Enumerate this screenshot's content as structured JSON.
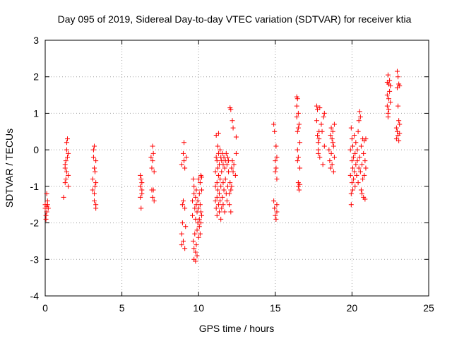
{
  "chart_data": {
    "type": "scatter",
    "title": "Day 095 of 2019, Sidereal Day-to-day VTEC variation (SDTVAR) for receiver ktia",
    "xlabel": "GPS time / hours",
    "ylabel": "SDTVAR / TECUs",
    "xlim": [
      0,
      25
    ],
    "ylim": [
      -4,
      3
    ],
    "xticks": [
      "0",
      "5",
      "10",
      "15",
      "20",
      "25"
    ],
    "yticks": [
      "-4",
      "-3",
      "-2",
      "-1",
      "0",
      "1",
      "2",
      "3"
    ],
    "grid": true,
    "marker": "+",
    "color": "#ff0000",
    "series": [
      {
        "name": "SDTVAR",
        "points": [
          [
            0.0,
            -1.5
          ],
          [
            0.0,
            -1.6
          ],
          [
            0.05,
            -1.8
          ],
          [
            0.05,
            -1.9
          ],
          [
            0.1,
            -1.7
          ],
          [
            0.1,
            -1.55
          ],
          [
            0.1,
            -1.2
          ],
          [
            0.15,
            -1.5
          ],
          [
            0.15,
            -1.4
          ],
          [
            0.2,
            -1.6
          ],
          [
            1.2,
            -1.3
          ],
          [
            1.3,
            -0.9
          ],
          [
            1.3,
            -0.5
          ],
          [
            1.3,
            -0.4
          ],
          [
            1.35,
            -0.8
          ],
          [
            1.35,
            -0.3
          ],
          [
            1.4,
            -0.6
          ],
          [
            1.4,
            0.0
          ],
          [
            1.4,
            0.2
          ],
          [
            1.45,
            0.3
          ],
          [
            1.45,
            -0.2
          ],
          [
            1.5,
            -1.0
          ],
          [
            1.5,
            -0.7
          ],
          [
            1.5,
            -0.1
          ],
          [
            3.1,
            -1.1
          ],
          [
            3.1,
            -0.8
          ],
          [
            3.15,
            -0.2
          ],
          [
            3.15,
            0.0
          ],
          [
            3.2,
            -0.5
          ],
          [
            3.2,
            0.1
          ],
          [
            3.2,
            -1.2
          ],
          [
            3.2,
            -1.4
          ],
          [
            3.25,
            -1.0
          ],
          [
            3.25,
            -0.6
          ],
          [
            3.3,
            -1.5
          ],
          [
            3.3,
            -1.6
          ],
          [
            3.3,
            -0.9
          ],
          [
            3.3,
            -0.3
          ],
          [
            6.2,
            -0.7
          ],
          [
            6.2,
            -1.0
          ],
          [
            6.2,
            -1.3
          ],
          [
            6.25,
            -0.8
          ],
          [
            6.25,
            -1.6
          ],
          [
            6.3,
            -1.2
          ],
          [
            6.3,
            -1.1
          ],
          [
            6.3,
            -0.9
          ],
          [
            6.9,
            -0.2
          ],
          [
            6.95,
            -0.5
          ],
          [
            6.95,
            -1.1
          ],
          [
            7.0,
            0.1
          ],
          [
            7.0,
            -0.3
          ],
          [
            7.0,
            -1.3
          ],
          [
            7.05,
            -0.1
          ],
          [
            7.05,
            -1.1
          ],
          [
            7.1,
            -0.6
          ],
          [
            7.1,
            -1.4
          ],
          [
            8.9,
            -0.4
          ],
          [
            8.9,
            -2.3
          ],
          [
            8.9,
            -2.6
          ],
          [
            8.95,
            -1.5
          ],
          [
            8.95,
            -2.0
          ],
          [
            9.0,
            -0.1
          ],
          [
            9.0,
            -2.5
          ],
          [
            9.0,
            -1.4
          ],
          [
            9.05,
            0.2
          ],
          [
            9.05,
            -0.3
          ],
          [
            9.1,
            -0.5
          ],
          [
            9.1,
            -1.6
          ],
          [
            9.1,
            -2.7
          ],
          [
            9.15,
            -2.1
          ],
          [
            9.2,
            -0.2
          ],
          [
            9.6,
            -1.4
          ],
          [
            9.6,
            -1.8
          ],
          [
            9.65,
            -0.8
          ],
          [
            9.65,
            -2.5
          ],
          [
            9.7,
            -1.0
          ],
          [
            9.7,
            -1.2
          ],
          [
            9.7,
            -2.7
          ],
          [
            9.7,
            -3.0
          ],
          [
            9.75,
            -1.6
          ],
          [
            9.75,
            -2.3
          ],
          [
            9.8,
            -1.3
          ],
          [
            9.8,
            -1.9
          ],
          [
            9.8,
            -2.8
          ],
          [
            9.8,
            -3.05
          ],
          [
            9.85,
            -1.1
          ],
          [
            9.85,
            -1.5
          ],
          [
            9.85,
            -2.6
          ],
          [
            9.9,
            -1.7
          ],
          [
            9.9,
            -2.2
          ],
          [
            9.9,
            -2.9
          ],
          [
            9.95,
            -1.4
          ],
          [
            9.95,
            -2.0
          ],
          [
            10.0,
            -0.8
          ],
          [
            10.0,
            -1.6
          ],
          [
            10.0,
            -2.4
          ],
          [
            10.05,
            -1.2
          ],
          [
            10.05,
            -1.9
          ],
          [
            10.05,
            -2.1
          ],
          [
            10.1,
            -0.9
          ],
          [
            10.1,
            -1.5
          ],
          [
            10.1,
            -2.3
          ],
          [
            10.15,
            -0.7
          ],
          [
            10.15,
            -1.7
          ],
          [
            10.15,
            -2.0
          ],
          [
            10.2,
            -1.1
          ],
          [
            10.2,
            -1.8
          ],
          [
            10.2,
            -0.75
          ],
          [
            11.1,
            -1.0
          ],
          [
            11.1,
            -1.4
          ],
          [
            11.1,
            -0.6
          ],
          [
            11.15,
            0.4
          ],
          [
            11.15,
            -0.2
          ],
          [
            11.15,
            -1.6
          ],
          [
            11.2,
            -0.3
          ],
          [
            11.2,
            -0.9
          ],
          [
            11.2,
            -1.3
          ],
          [
            11.2,
            -1.8
          ],
          [
            11.25,
            0.1
          ],
          [
            11.25,
            -0.5
          ],
          [
            11.25,
            -1.1
          ],
          [
            11.3,
            0.45
          ],
          [
            11.3,
            -0.1
          ],
          [
            11.3,
            -0.7
          ],
          [
            11.3,
            -1.5
          ],
          [
            11.35,
            -0.4
          ],
          [
            11.35,
            -1.2
          ],
          [
            11.35,
            -1.7
          ],
          [
            11.4,
            0.0
          ],
          [
            11.4,
            -0.8
          ],
          [
            11.4,
            -1.4
          ],
          [
            11.45,
            -0.2
          ],
          [
            11.45,
            -1.0
          ],
          [
            11.45,
            -1.9
          ],
          [
            11.5,
            -0.3
          ],
          [
            11.5,
            -0.6
          ],
          [
            11.5,
            -1.6
          ],
          [
            11.55,
            -0.1
          ],
          [
            11.55,
            -1.3
          ],
          [
            11.6,
            -0.4
          ],
          [
            11.6,
            -0.9
          ],
          [
            11.6,
            -1.5
          ],
          [
            11.65,
            -0.2
          ],
          [
            11.65,
            -1.1
          ],
          [
            11.7,
            -0.5
          ],
          [
            11.7,
            -1.7
          ],
          [
            11.75,
            -0.3
          ],
          [
            11.75,
            -0.8
          ],
          [
            11.8,
            -0.1
          ],
          [
            11.8,
            -1.2
          ],
          [
            11.85,
            -0.4
          ],
          [
            11.85,
            -1.4
          ],
          [
            11.9,
            -0.2
          ],
          [
            11.9,
            -1.0
          ],
          [
            11.95,
            -0.6
          ],
          [
            11.95,
            -0.3
          ],
          [
            12.0,
            -1.2
          ],
          [
            12.0,
            -1.5
          ],
          [
            12.05,
            1.15
          ],
          [
            12.05,
            -0.9
          ],
          [
            12.1,
            1.1
          ],
          [
            12.1,
            -1.1
          ],
          [
            12.1,
            -1.7
          ],
          [
            12.15,
            -0.5
          ],
          [
            12.15,
            -1.0
          ],
          [
            12.2,
            0.8
          ],
          [
            12.2,
            -0.3
          ],
          [
            12.25,
            0.6
          ],
          [
            12.25,
            -0.6
          ],
          [
            12.3,
            -0.4
          ],
          [
            12.4,
            -0.7
          ],
          [
            12.45,
            0.35
          ],
          [
            12.45,
            -0.1
          ],
          [
            14.9,
            0.7
          ],
          [
            14.9,
            -1.4
          ],
          [
            14.95,
            0.5
          ],
          [
            14.95,
            -1.6
          ],
          [
            15.0,
            -0.3
          ],
          [
            15.0,
            -1.8
          ],
          [
            15.0,
            -0.6
          ],
          [
            15.05,
            0.1
          ],
          [
            15.05,
            -0.5
          ],
          [
            15.05,
            -1.9
          ],
          [
            15.1,
            -0.2
          ],
          [
            15.1,
            -0.8
          ],
          [
            15.1,
            -1.5
          ],
          [
            15.1,
            -1.7
          ],
          [
            16.4,
            1.45
          ],
          [
            16.4,
            1.2
          ],
          [
            16.4,
            0.9
          ],
          [
            16.45,
            1.4
          ],
          [
            16.45,
            0.5
          ],
          [
            16.45,
            0.0
          ],
          [
            16.45,
            -0.3
          ],
          [
            16.5,
            1.0
          ],
          [
            16.5,
            0.6
          ],
          [
            16.5,
            -0.2
          ],
          [
            16.5,
            -0.9
          ],
          [
            16.5,
            -1.0
          ],
          [
            16.55,
            0.7
          ],
          [
            16.55,
            -1.1
          ],
          [
            16.6,
            0.2
          ],
          [
            16.6,
            -0.5
          ],
          [
            16.6,
            -0.95
          ],
          [
            17.7,
            1.2
          ],
          [
            17.7,
            0.8
          ],
          [
            17.75,
            1.1
          ],
          [
            17.75,
            0.4
          ],
          [
            17.8,
            0.2
          ],
          [
            17.8,
            -0.1
          ],
          [
            17.8,
            0.0
          ],
          [
            17.85,
            0.5
          ],
          [
            17.85,
            0.3
          ],
          [
            17.9,
            1.15
          ],
          [
            17.9,
            -0.2
          ],
          [
            18.0,
            0.7
          ],
          [
            18.05,
            0.5
          ],
          [
            18.1,
            -0.4
          ],
          [
            18.15,
            0.9
          ],
          [
            18.2,
            1.0
          ],
          [
            18.2,
            0.1
          ],
          [
            18.5,
            0.0
          ],
          [
            18.55,
            -0.3
          ],
          [
            18.6,
            0.4
          ],
          [
            18.6,
            -0.5
          ],
          [
            18.65,
            0.6
          ],
          [
            18.65,
            -0.1
          ],
          [
            18.7,
            0.3
          ],
          [
            18.7,
            -0.4
          ],
          [
            18.75,
            0.5
          ],
          [
            18.75,
            0.2
          ],
          [
            18.8,
            0.1
          ],
          [
            18.8,
            -0.6
          ],
          [
            18.85,
            0.7
          ],
          [
            18.85,
            -0.2
          ],
          [
            19.9,
            0.0
          ],
          [
            19.9,
            -0.7
          ],
          [
            19.95,
            0.6
          ],
          [
            19.95,
            -1.2
          ],
          [
            19.95,
            -1.5
          ],
          [
            20.0,
            0.3
          ],
          [
            20.0,
            -0.3
          ],
          [
            20.0,
            -0.9
          ],
          [
            20.05,
            0.1
          ],
          [
            20.05,
            -0.5
          ],
          [
            20.05,
            -1.1
          ],
          [
            20.1,
            -0.2
          ],
          [
            20.1,
            -0.8
          ],
          [
            20.15,
            0.4
          ],
          [
            20.15,
            -0.6
          ],
          [
            20.2,
            -0.1
          ],
          [
            20.2,
            -1.0
          ],
          [
            20.25,
            0.2
          ],
          [
            20.25,
            -0.4
          ],
          [
            20.3,
            -0.7
          ],
          [
            20.35,
            0.0
          ],
          [
            20.35,
            -0.3
          ],
          [
            20.4,
            0.5
          ],
          [
            20.4,
            -0.9
          ],
          [
            20.45,
            0.8
          ],
          [
            20.45,
            -0.5
          ],
          [
            20.5,
            1.05
          ],
          [
            20.5,
            -0.2
          ],
          [
            20.55,
            0.9
          ],
          [
            20.55,
            -0.6
          ],
          [
            20.6,
            -1.1
          ],
          [
            20.6,
            0.1
          ],
          [
            20.65,
            -0.4
          ],
          [
            20.65,
            -1.2
          ],
          [
            20.7,
            -0.8
          ],
          [
            20.7,
            0.3
          ],
          [
            20.75,
            -1.3
          ],
          [
            20.75,
            -0.1
          ],
          [
            20.8,
            0.25
          ],
          [
            20.8,
            -0.7
          ],
          [
            20.85,
            -1.35
          ],
          [
            20.85,
            -0.3
          ],
          [
            20.9,
            0.3
          ],
          [
            20.9,
            -0.5
          ],
          [
            22.3,
            1.85
          ],
          [
            22.3,
            1.5
          ],
          [
            22.3,
            1.2
          ],
          [
            22.35,
            2.05
          ],
          [
            22.35,
            1.0
          ],
          [
            22.35,
            0.9
          ],
          [
            22.4,
            1.8
          ],
          [
            22.4,
            1.4
          ],
          [
            22.4,
            1.1
          ],
          [
            22.45,
            1.9
          ],
          [
            22.45,
            1.6
          ],
          [
            22.5,
            1.3
          ],
          [
            22.5,
            1.75
          ],
          [
            22.9,
            0.6
          ],
          [
            22.9,
            0.3
          ],
          [
            22.95,
            2.15
          ],
          [
            22.95,
            1.7
          ],
          [
            22.95,
            0.5
          ],
          [
            23.0,
            2.0
          ],
          [
            23.0,
            1.2
          ],
          [
            23.0,
            0.4
          ],
          [
            23.05,
            1.8
          ],
          [
            23.05,
            0.8
          ],
          [
            23.05,
            0.25
          ],
          [
            23.1,
            1.75
          ],
          [
            23.1,
            0.45
          ],
          [
            23.1,
            0.7
          ]
        ]
      }
    ]
  }
}
